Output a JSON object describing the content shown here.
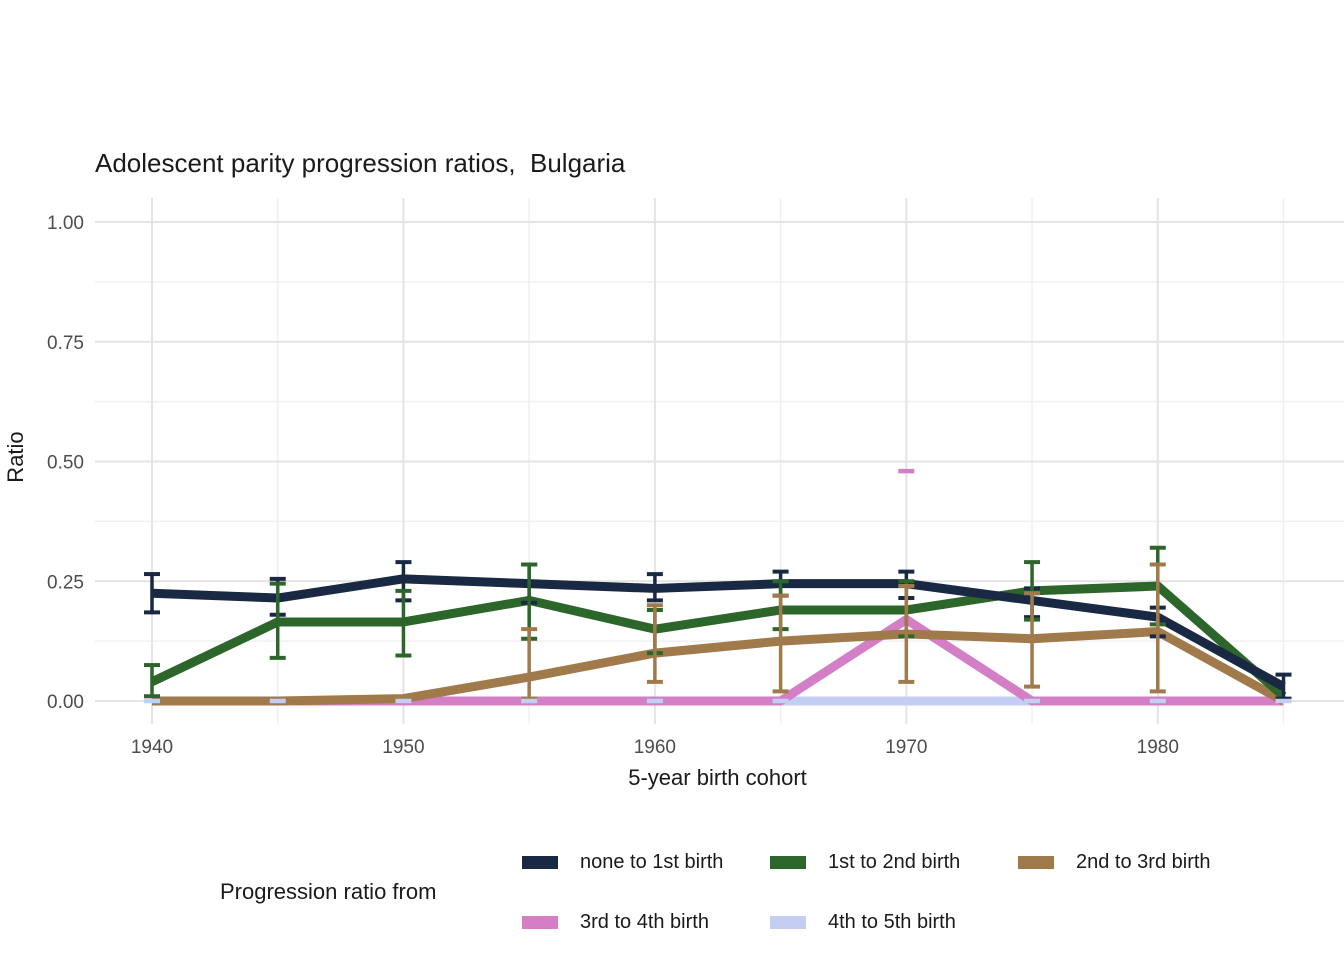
{
  "chart_data": {
    "type": "line",
    "title": "Adolescent parity progression ratios,  Bulgaria",
    "xlabel": "5-year birth cohort",
    "ylabel": "Ratio",
    "legend_title": "Progression ratio from",
    "grid": true,
    "legend_position": "bottom",
    "xlim": [
      1937.75,
      1987.25
    ],
    "ylim": [
      0,
      1
    ],
    "x": [
      1940,
      1945,
      1950,
      1955,
      1960,
      1965,
      1970,
      1975,
      1980,
      1985
    ],
    "xticks": [
      "1940",
      "1950",
      "1960",
      "1970",
      "1980"
    ],
    "xtick_values": [
      1940,
      1950,
      1960,
      1970,
      1980
    ],
    "yticks": [
      "0.00",
      "0.25",
      "0.50",
      "0.75",
      "1.00"
    ],
    "ytick_values": [
      0,
      0.25,
      0.5,
      0.75,
      1.0
    ],
    "series": [
      {
        "name": "none to 1st birth",
        "color": "#1a2943",
        "values": [
          0.225,
          0.215,
          0.255,
          0.245,
          0.235,
          0.245,
          0.245,
          0.21,
          0.175,
          0.03
        ],
        "err_low": [
          0.185,
          0.18,
          0.21,
          0.205,
          0.21,
          0.22,
          0.215,
          0.175,
          0.135,
          0.005
        ],
        "err_high": [
          0.265,
          0.255,
          0.29,
          0.285,
          0.265,
          0.27,
          0.27,
          0.235,
          0.195,
          0.055
        ],
        "cap_only": false
      },
      {
        "name": "1st to 2nd birth",
        "color": "#2d662b",
        "values": [
          0.04,
          0.165,
          0.165,
          0.21,
          0.15,
          0.19,
          0.19,
          0.23,
          0.24,
          0.01
        ],
        "err_low": [
          0.01,
          0.09,
          0.095,
          0.13,
          0.1,
          0.15,
          0.135,
          0.17,
          0.16,
          null
        ],
        "err_high": [
          0.075,
          0.245,
          0.23,
          0.285,
          0.19,
          0.25,
          0.25,
          0.29,
          0.32,
          null
        ],
        "cap_only": false
      },
      {
        "name": "2nd to 3rd birth",
        "color": "#a17a4b",
        "values": [
          0,
          0,
          0.005,
          0.05,
          0.1,
          0.125,
          0.14,
          0.13,
          0.145,
          0
        ],
        "err_low": [
          null,
          null,
          null,
          0.005,
          0.04,
          0.02,
          0.04,
          0.03,
          0.02,
          null
        ],
        "err_high": [
          null,
          null,
          null,
          0.15,
          0.2,
          0.22,
          0.24,
          0.225,
          0.285,
          null
        ],
        "cap_only": false
      },
      {
        "name": "3rd to 4th birth",
        "color": "#d47ec6",
        "values": [
          0,
          0,
          0,
          0,
          0,
          0,
          0.17,
          0,
          0,
          0
        ],
        "err_low": [
          null,
          null,
          null,
          null,
          null,
          null,
          null,
          null,
          null,
          null
        ],
        "err_high": [
          null,
          null,
          null,
          null,
          null,
          null,
          0.48,
          null,
          null,
          null
        ],
        "cap_only": true
      },
      {
        "name": "4th to 5th birth",
        "color": "#c4cdf2",
        "values": [
          0,
          0,
          0,
          0,
          0,
          0,
          0,
          0,
          0,
          0
        ],
        "err_low": [
          0,
          0,
          0,
          0,
          0,
          0,
          0,
          0,
          0,
          0
        ],
        "err_high": [
          0,
          0,
          0,
          0,
          0,
          0,
          0,
          0,
          0,
          0
        ],
        "cap_only": true
      }
    ]
  }
}
